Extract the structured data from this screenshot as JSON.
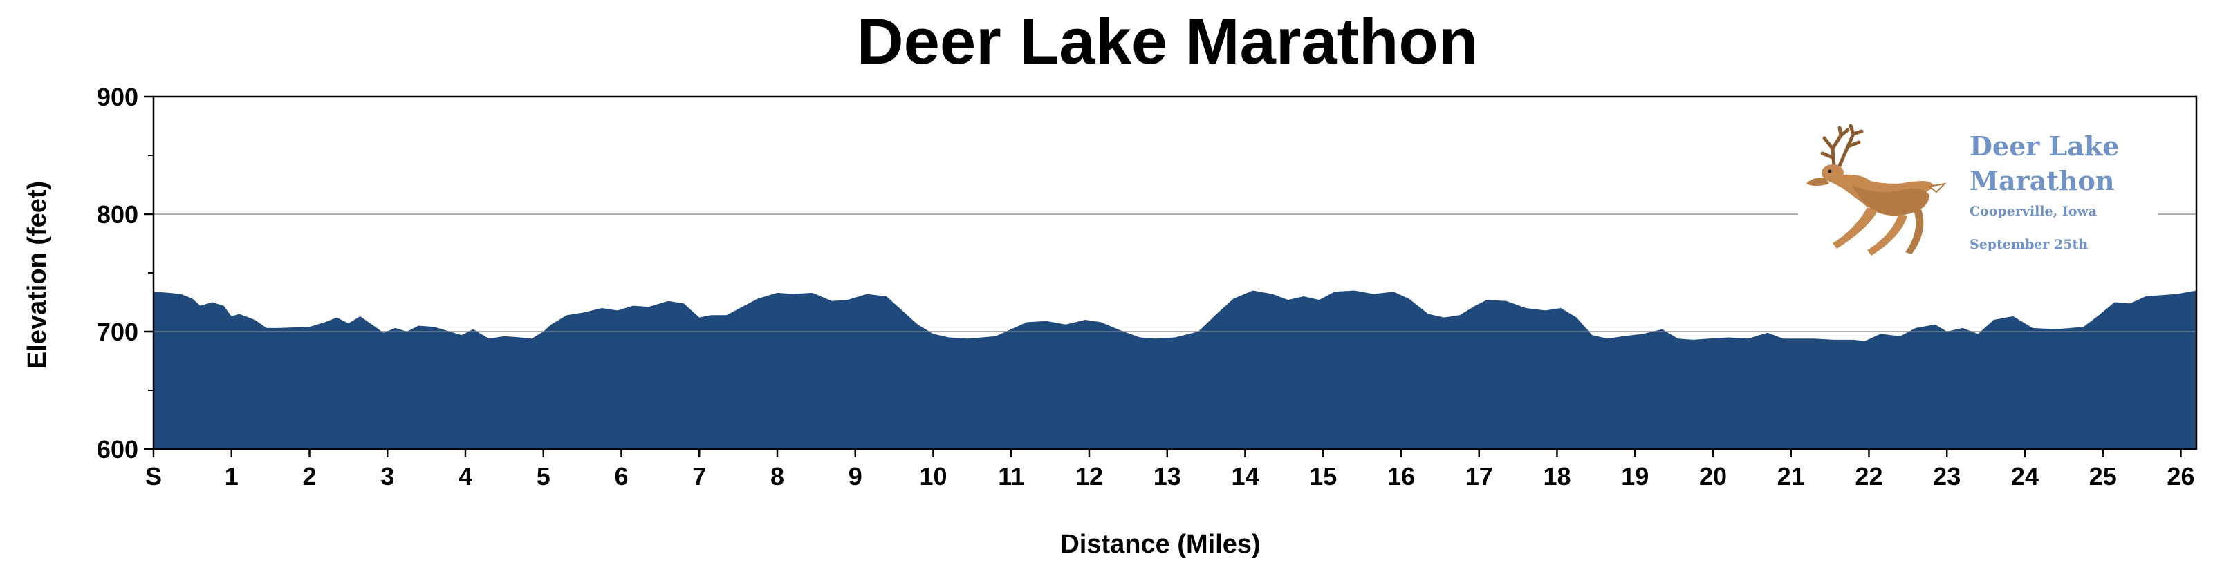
{
  "chart_data": {
    "type": "area",
    "title": "Deer Lake Marathon",
    "xlabel": "Distance (Miles)",
    "ylabel": "Elevation (feet)",
    "xlim": [
      0,
      26.2
    ],
    "ylim": [
      600,
      900
    ],
    "y_ticks": [
      600,
      700,
      800,
      900
    ],
    "y_minor_ticks": [
      650,
      750,
      850
    ],
    "x_ticks": [
      {
        "value": 0,
        "label": "S"
      },
      {
        "value": 1,
        "label": "1"
      },
      {
        "value": 2,
        "label": "2"
      },
      {
        "value": 3,
        "label": "3"
      },
      {
        "value": 4,
        "label": "4"
      },
      {
        "value": 5,
        "label": "5"
      },
      {
        "value": 6,
        "label": "6"
      },
      {
        "value": 7,
        "label": "7"
      },
      {
        "value": 8,
        "label": "8"
      },
      {
        "value": 9,
        "label": "9"
      },
      {
        "value": 10,
        "label": "10"
      },
      {
        "value": 11,
        "label": "11"
      },
      {
        "value": 12,
        "label": "12"
      },
      {
        "value": 13,
        "label": "13"
      },
      {
        "value": 14,
        "label": "14"
      },
      {
        "value": 15,
        "label": "15"
      },
      {
        "value": 16,
        "label": "16"
      },
      {
        "value": 17,
        "label": "17"
      },
      {
        "value": 18,
        "label": "18"
      },
      {
        "value": 19,
        "label": "19"
      },
      {
        "value": 20,
        "label": "20"
      },
      {
        "value": 21,
        "label": "21"
      },
      {
        "value": 22,
        "label": "22"
      },
      {
        "value": 23,
        "label": "23"
      },
      {
        "value": 24,
        "label": "24"
      },
      {
        "value": 25,
        "label": "25"
      },
      {
        "value": 26,
        "label": "26"
      }
    ],
    "grid": "horizontal",
    "fill_color": "#214a7c",
    "grid_color": "#b0b0b0",
    "x": [
      0,
      0.2,
      0.35,
      0.5,
      0.6,
      0.75,
      0.9,
      1.0,
      1.1,
      1.3,
      1.45,
      1.6,
      2.0,
      2.2,
      2.35,
      2.5,
      2.65,
      2.8,
      2.95,
      3.1,
      3.25,
      3.4,
      3.6,
      3.8,
      3.95,
      4.1,
      4.3,
      4.5,
      4.7,
      4.85,
      5.0,
      5.1,
      5.3,
      5.5,
      5.75,
      5.95,
      6.15,
      6.35,
      6.6,
      6.8,
      7.0,
      7.15,
      7.35,
      7.55,
      7.75,
      8.0,
      8.2,
      8.45,
      8.7,
      8.9,
      9.15,
      9.4,
      9.6,
      9.8,
      10.0,
      10.2,
      10.45,
      10.8,
      11.0,
      11.2,
      11.45,
      11.7,
      11.95,
      12.15,
      12.4,
      12.65,
      12.85,
      13.1,
      13.4,
      13.65,
      13.85,
      14.1,
      14.35,
      14.55,
      14.75,
      14.95,
      15.15,
      15.4,
      15.65,
      15.9,
      16.1,
      16.35,
      16.55,
      16.75,
      16.95,
      17.1,
      17.35,
      17.6,
      17.85,
      18.05,
      18.25,
      18.45,
      18.65,
      18.85,
      19.1,
      19.35,
      19.55,
      19.75,
      19.95,
      20.2,
      20.45,
      20.7,
      20.9,
      21.1,
      21.3,
      21.55,
      21.8,
      21.95,
      22.15,
      22.4,
      22.6,
      22.85,
      23.0,
      23.2,
      23.4,
      23.6,
      23.85,
      24.1,
      24.4,
      24.75,
      24.95,
      25.15,
      25.35,
      25.55,
      25.75,
      25.95,
      26.2
    ],
    "y": [
      734,
      733,
      732,
      728,
      722,
      725,
      722,
      713,
      715,
      710,
      703,
      703,
      704,
      708,
      712,
      707,
      713,
      706,
      699,
      703,
      700,
      705,
      704,
      700,
      697,
      702,
      694,
      696,
      695,
      694,
      700,
      706,
      714,
      716,
      720,
      718,
      722,
      721,
      726,
      724,
      712,
      714,
      714,
      721,
      728,
      733,
      732,
      733,
      726,
      727,
      732,
      730,
      718,
      706,
      698,
      695,
      694,
      696,
      702,
      708,
      709,
      706,
      710,
      708,
      701,
      695,
      694,
      695,
      700,
      716,
      728,
      735,
      732,
      727,
      730,
      727,
      734,
      735,
      732,
      734,
      728,
      715,
      712,
      714,
      722,
      727,
      726,
      720,
      718,
      720,
      712,
      697,
      694,
      696,
      698,
      702,
      694,
      693,
      694,
      695,
      694,
      699,
      694,
      694,
      694,
      693,
      693,
      692,
      698,
      696,
      703,
      706,
      700,
      703,
      698,
      710,
      713,
      703,
      702,
      704,
      714,
      725,
      724,
      730,
      731,
      732,
      735
    ]
  },
  "logo": {
    "title_line1": "Deer Lake",
    "title_line2": "Marathon",
    "location": "Cooperville, Iowa",
    "date": "September 25th",
    "text_color": "#7092c4",
    "deer_color": "#c68a50"
  }
}
